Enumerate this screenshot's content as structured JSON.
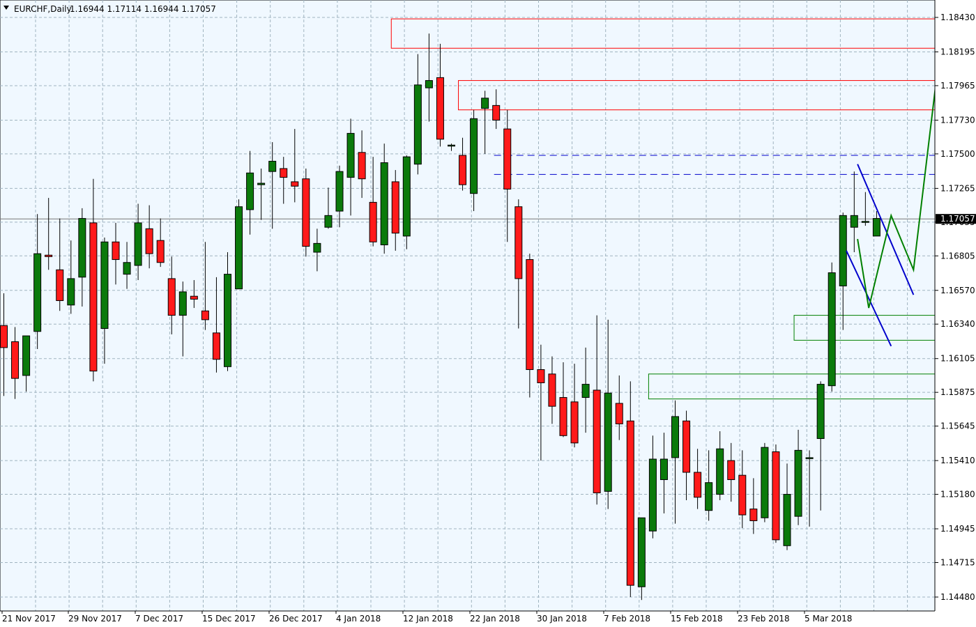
{
  "header": {
    "symbol": "EURCHF,Daily",
    "ohlc": "1.16944 1.17114 1.16944 1.17057"
  },
  "colors": {
    "background": "#f0f8ff",
    "grid": "#a0b4c0",
    "bull": "#0b7a0b",
    "bear": "#ff1a1a",
    "wick": "#000000",
    "zone_red": "#ff0000",
    "zone_green": "#008000",
    "blue_line": "#0000cc",
    "green_line": "#008000"
  },
  "chart_data": {
    "type": "candlestick",
    "symbol": "EURCHF",
    "timeframe": "Daily",
    "price_range": [
      1.1448,
      1.1843
    ],
    "y_ticks": [
      "1.18430",
      "1.18195",
      "1.17965",
      "1.17730",
      "1.17500",
      "1.17265",
      "1.17035",
      "1.16805",
      "1.16570",
      "1.16340",
      "1.16105",
      "1.15875",
      "1.15645",
      "1.15410",
      "1.15180",
      "1.14945",
      "1.14715",
      "1.14480"
    ],
    "x_ticks": [
      "21 Nov 2017",
      "29 Nov 2017",
      "7 Dec 2017",
      "15 Dec 2017",
      "26 Dec 2017",
      "4 Jan 2018",
      "12 Jan 2018",
      "22 Jan 2018",
      "30 Jan 2018",
      "7 Feb 2018",
      "15 Feb 2018",
      "23 Feb 2018",
      "5 Mar 2018"
    ],
    "last_price": "1.17057",
    "candles": [
      {
        "o": 1.1633,
        "h": 1.1655,
        "l": 1.1585,
        "c": 1.1618
      },
      {
        "o": 1.1622,
        "h": 1.1632,
        "l": 1.1583,
        "c": 1.1597
      },
      {
        "o": 1.1599,
        "h": 1.1625,
        "l": 1.1588,
        "c": 1.1626
      },
      {
        "o": 1.1629,
        "h": 1.1709,
        "l": 1.1617,
        "c": 1.1682
      },
      {
        "o": 1.1681,
        "h": 1.172,
        "l": 1.1671,
        "c": 1.168
      },
      {
        "o": 1.1671,
        "h": 1.1706,
        "l": 1.1643,
        "c": 1.165
      },
      {
        "o": 1.1647,
        "h": 1.1691,
        "l": 1.1641,
        "c": 1.1665
      },
      {
        "o": 1.1666,
        "h": 1.1713,
        "l": 1.1646,
        "c": 1.1706
      },
      {
        "o": 1.1703,
        "h": 1.1733,
        "l": 1.1595,
        "c": 1.1602
      },
      {
        "o": 1.1631,
        "h": 1.1693,
        "l": 1.1607,
        "c": 1.169
      },
      {
        "o": 1.169,
        "h": 1.1703,
        "l": 1.1661,
        "c": 1.1678
      },
      {
        "o": 1.1668,
        "h": 1.169,
        "l": 1.1658,
        "c": 1.1676
      },
      {
        "o": 1.1674,
        "h": 1.1716,
        "l": 1.1664,
        "c": 1.1703
      },
      {
        "o": 1.1699,
        "h": 1.1715,
        "l": 1.1672,
        "c": 1.1682
      },
      {
        "o": 1.1691,
        "h": 1.1706,
        "l": 1.1673,
        "c": 1.1676
      },
      {
        "o": 1.1665,
        "h": 1.168,
        "l": 1.1627,
        "c": 1.164
      },
      {
        "o": 1.164,
        "h": 1.1663,
        "l": 1.1612,
        "c": 1.1656
      },
      {
        "o": 1.1653,
        "h": 1.1664,
        "l": 1.1645,
        "c": 1.1651
      },
      {
        "o": 1.1643,
        "h": 1.169,
        "l": 1.163,
        "c": 1.1637
      },
      {
        "o": 1.1628,
        "h": 1.1666,
        "l": 1.1601,
        "c": 1.161
      },
      {
        "o": 1.1605,
        "h": 1.1683,
        "l": 1.1602,
        "c": 1.1668
      },
      {
        "o": 1.1658,
        "h": 1.1719,
        "l": 1.1658,
        "c": 1.1714
      },
      {
        "o": 1.1712,
        "h": 1.1752,
        "l": 1.1695,
        "c": 1.1737
      },
      {
        "o": 1.1729,
        "h": 1.174,
        "l": 1.1705,
        "c": 1.173
      },
      {
        "o": 1.1738,
        "h": 1.1758,
        "l": 1.1699,
        "c": 1.1745
      },
      {
        "o": 1.174,
        "h": 1.1748,
        "l": 1.1716,
        "c": 1.1734
      },
      {
        "o": 1.1731,
        "h": 1.1767,
        "l": 1.1717,
        "c": 1.1728
      },
      {
        "o": 1.1733,
        "h": 1.174,
        "l": 1.168,
        "c": 1.1687
      },
      {
        "o": 1.1683,
        "h": 1.1699,
        "l": 1.167,
        "c": 1.1689
      },
      {
        "o": 1.17,
        "h": 1.1727,
        "l": 1.1699,
        "c": 1.1708
      },
      {
        "o": 1.1711,
        "h": 1.1742,
        "l": 1.17,
        "c": 1.1738
      },
      {
        "o": 1.1734,
        "h": 1.1774,
        "l": 1.1708,
        "c": 1.1764
      },
      {
        "o": 1.1751,
        "h": 1.1766,
        "l": 1.172,
        "c": 1.1733
      },
      {
        "o": 1.1717,
        "h": 1.1748,
        "l": 1.1687,
        "c": 1.169
      },
      {
        "o": 1.1688,
        "h": 1.1757,
        "l": 1.1682,
        "c": 1.1744
      },
      {
        "o": 1.1731,
        "h": 1.1739,
        "l": 1.1684,
        "c": 1.1696
      },
      {
        "o": 1.1694,
        "h": 1.1749,
        "l": 1.1685,
        "c": 1.1748
      },
      {
        "o": 1.1743,
        "h": 1.1818,
        "l": 1.1736,
        "c": 1.1797
      },
      {
        "o": 1.1795,
        "h": 1.1832,
        "l": 1.1772,
        "c": 1.18
      },
      {
        "o": 1.1802,
        "h": 1.1825,
        "l": 1.1755,
        "c": 1.176
      },
      {
        "o": 1.1756,
        "h": 1.1757,
        "l": 1.1752,
        "c": 1.1756
      },
      {
        "o": 1.1749,
        "h": 1.1761,
        "l": 1.1725,
        "c": 1.1729
      },
      {
        "o": 1.1723,
        "h": 1.178,
        "l": 1.1711,
        "c": 1.1774
      },
      {
        "o": 1.1781,
        "h": 1.1793,
        "l": 1.175,
        "c": 1.1788
      },
      {
        "o": 1.1783,
        "h": 1.1794,
        "l": 1.1767,
        "c": 1.1773
      },
      {
        "o": 1.1767,
        "h": 1.178,
        "l": 1.169,
        "c": 1.1726
      },
      {
        "o": 1.1714,
        "h": 1.1719,
        "l": 1.1631,
        "c": 1.1665
      },
      {
        "o": 1.1678,
        "h": 1.1682,
        "l": 1.1584,
        "c": 1.1603
      },
      {
        "o": 1.1603,
        "h": 1.162,
        "l": 1.1541,
        "c": 1.1594
      },
      {
        "o": 1.16,
        "h": 1.1612,
        "l": 1.1566,
        "c": 1.1578
      },
      {
        "o": 1.1584,
        "h": 1.1608,
        "l": 1.1557,
        "c": 1.1558
      },
      {
        "o": 1.1581,
        "h": 1.1607,
        "l": 1.155,
        "c": 1.1553
      },
      {
        "o": 1.1584,
        "h": 1.1618,
        "l": 1.156,
        "c": 1.1593
      },
      {
        "o": 1.1589,
        "h": 1.164,
        "l": 1.1511,
        "c": 1.1519
      },
      {
        "o": 1.152,
        "h": 1.1637,
        "l": 1.1508,
        "c": 1.1587
      },
      {
        "o": 1.158,
        "h": 1.1599,
        "l": 1.1555,
        "c": 1.1566
      },
      {
        "o": 1.1568,
        "h": 1.1595,
        "l": 1.1448,
        "c": 1.1456
      },
      {
        "o": 1.1455,
        "h": 1.1499,
        "l": 1.1446,
        "c": 1.1502
      },
      {
        "o": 1.1493,
        "h": 1.1558,
        "l": 1.1488,
        "c": 1.1542
      },
      {
        "o": 1.1528,
        "h": 1.156,
        "l": 1.1505,
        "c": 1.1542
      },
      {
        "o": 1.1543,
        "h": 1.1582,
        "l": 1.1498,
        "c": 1.1571
      },
      {
        "o": 1.1568,
        "h": 1.1575,
        "l": 1.1514,
        "c": 1.1533
      },
      {
        "o": 1.1533,
        "h": 1.1549,
        "l": 1.1508,
        "c": 1.1516
      },
      {
        "o": 1.1507,
        "h": 1.1548,
        "l": 1.15,
        "c": 1.1526
      },
      {
        "o": 1.1518,
        "h": 1.1561,
        "l": 1.1514,
        "c": 1.1549
      },
      {
        "o": 1.1541,
        "h": 1.1553,
        "l": 1.1513,
        "c": 1.1528
      },
      {
        "o": 1.1531,
        "h": 1.1548,
        "l": 1.1495,
        "c": 1.1504
      },
      {
        "o": 1.1508,
        "h": 1.1529,
        "l": 1.1491,
        "c": 1.15
      },
      {
        "o": 1.1502,
        "h": 1.1553,
        "l": 1.1499,
        "c": 1.155
      },
      {
        "o": 1.1547,
        "h": 1.1552,
        "l": 1.1485,
        "c": 1.1487
      },
      {
        "o": 1.1483,
        "h": 1.1539,
        "l": 1.148,
        "c": 1.1518
      },
      {
        "o": 1.1503,
        "h": 1.1562,
        "l": 1.1497,
        "c": 1.1548
      },
      {
        "o": 1.1543,
        "h": 1.1548,
        "l": 1.1496,
        "c": 1.1543
      },
      {
        "o": 1.1556,
        "h": 1.1595,
        "l": 1.1507,
        "c": 1.1593
      },
      {
        "o": 1.1592,
        "h": 1.1676,
        "l": 1.1588,
        "c": 1.1669
      },
      {
        "o": 1.166,
        "h": 1.171,
        "l": 1.163,
        "c": 1.1708
      },
      {
        "o": 1.17,
        "h": 1.1738,
        "l": 1.1683,
        "c": 1.1708
      },
      {
        "o": 1.1704,
        "h": 1.1724,
        "l": 1.1701,
        "c": 1.1704
      },
      {
        "o": 1.1694,
        "h": 1.1711,
        "l": 1.1694,
        "c": 1.1706
      }
    ],
    "zones": [
      {
        "color": "red",
        "top": 1.1842,
        "bottom": 1.1822,
        "start_index": 35
      },
      {
        "color": "red",
        "top": 1.18,
        "bottom": 1.178,
        "start_index": 41
      },
      {
        "color": "green",
        "top": 1.16,
        "bottom": 1.1583,
        "start_index": 58
      },
      {
        "color": "green",
        "top": 1.164,
        "bottom": 1.1623,
        "start_index": 71
      }
    ],
    "blue_dashed_levels": [
      1.1749,
      1.1736
    ],
    "blue_lines": [
      {
        "from": {
          "i": 75.3,
          "p": 1.1684
        },
        "to": {
          "i": 79.3,
          "p": 1.1619
        }
      },
      {
        "from": {
          "i": 76.3,
          "p": 1.1743
        },
        "to": {
          "i": 81.3,
          "p": 1.1654
        }
      }
    ],
    "green_path": [
      {
        "i": 76.3,
        "p": 1.1692
      },
      {
        "i": 77.3,
        "p": 1.1645
      },
      {
        "i": 79.3,
        "p": 1.1708
      },
      {
        "i": 81.3,
        "p": 1.1671
      },
      {
        "i": 83.3,
        "p": 1.1798
      }
    ]
  }
}
